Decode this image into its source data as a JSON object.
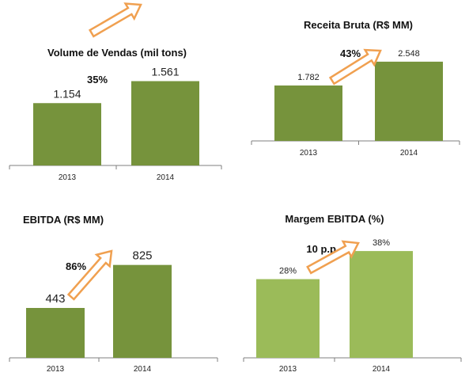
{
  "colors": {
    "bar_dark": "#76933c",
    "bar_light": "#9bbb59",
    "arrow": "#f0a050",
    "axis": "#7f7f7f"
  },
  "chart_data": [
    {
      "type": "bar",
      "title": "Volume de Vendas (mil tons)",
      "categories": [
        "2013",
        "2014"
      ],
      "values": [
        1154,
        1561
      ],
      "value_labels": [
        "1.154",
        "1.561"
      ],
      "growth_label": "35%",
      "ylim": [
        0,
        1700
      ],
      "grid": false,
      "legend": "none",
      "color": "bar_dark"
    },
    {
      "type": "bar",
      "title": "Receita Bruta (R$ MM)",
      "categories": [
        "2013",
        "2014"
      ],
      "values": [
        1782,
        2548
      ],
      "value_labels": [
        "1.782",
        "2.548"
      ],
      "growth_label": "43%",
      "ylim": [
        0,
        2800
      ],
      "grid": false,
      "legend": "none",
      "color": "bar_dark"
    },
    {
      "type": "bar",
      "title": "EBITDA  (R$ MM)",
      "categories": [
        "2013",
        "2014"
      ],
      "values": [
        443,
        825
      ],
      "value_labels": [
        "443",
        "825"
      ],
      "growth_label": "86%",
      "ylim": [
        0,
        900
      ],
      "grid": false,
      "legend": "none",
      "color": "bar_dark"
    },
    {
      "type": "bar",
      "title": "Margem EBITDA  (%)",
      "categories": [
        "2013",
        "2014"
      ],
      "values": [
        28,
        38
      ],
      "value_labels": [
        "28%",
        "38%"
      ],
      "growth_label": "10 p.p.",
      "ylim": [
        0,
        40
      ],
      "grid": false,
      "legend": "none",
      "color": "bar_light"
    }
  ]
}
